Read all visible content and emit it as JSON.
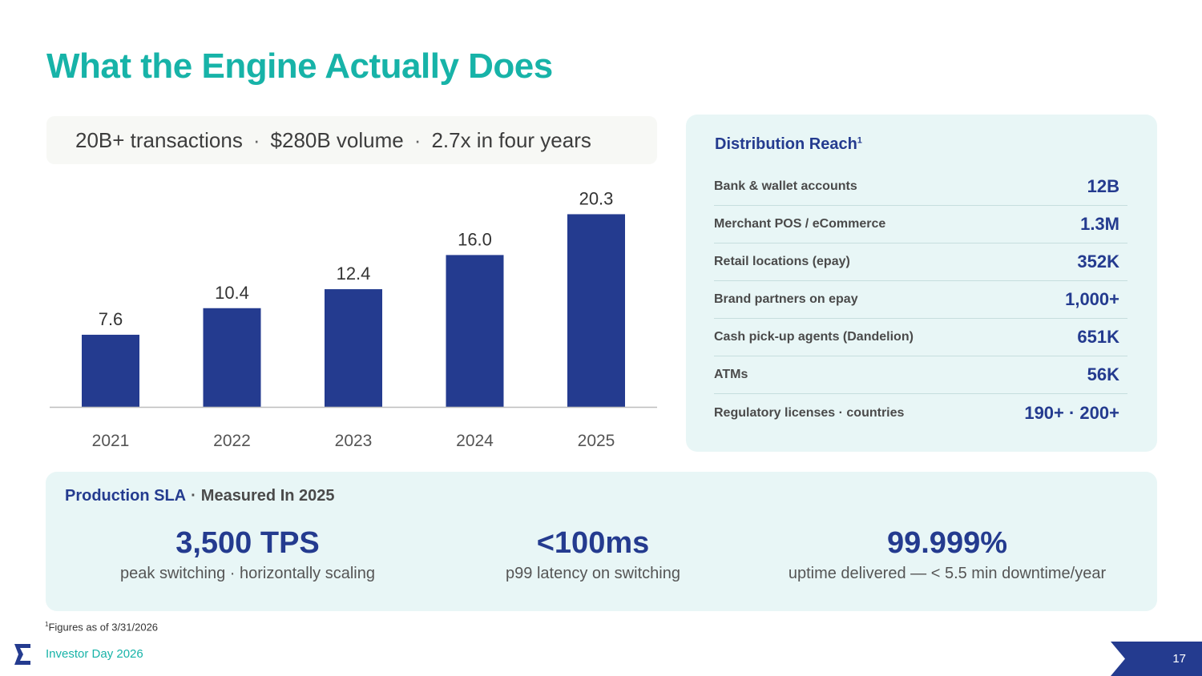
{
  "title": "What the Engine Actually Does",
  "summary": {
    "item1": "20B+ transactions",
    "item2": "$280B volume",
    "item3": "2.7x in four years",
    "separator": "·"
  },
  "chart_data": {
    "type": "bar",
    "categories": [
      "2021",
      "2022",
      "2023",
      "2024",
      "2025"
    ],
    "values": [
      7.6,
      10.4,
      12.4,
      16.0,
      20.3
    ],
    "value_labels": [
      "7.6",
      "10.4",
      "12.4",
      "16.0",
      "20.3"
    ],
    "title": "",
    "xlabel": "",
    "ylabel": "",
    "ylim": [
      0,
      22
    ],
    "grid": false,
    "bar_color": "#243b8f"
  },
  "distribution": {
    "title": "Distribution Reach",
    "footnote_marker": "1",
    "rows": [
      {
        "label": "Bank & wallet accounts",
        "value": "12B"
      },
      {
        "label": "Merchant POS / eCommerce",
        "value": "1.3M"
      },
      {
        "label": "Retail locations (epay)",
        "value": "352K"
      },
      {
        "label": "Brand partners on epay",
        "value": "1,000+"
      },
      {
        "label": "Cash pick-up agents (Dandelion)",
        "value": "651K"
      },
      {
        "label": "ATMs",
        "value": "56K"
      },
      {
        "label": "Regulatory licenses · countries",
        "value": "190+ · 200+"
      }
    ]
  },
  "sla": {
    "heading": "Production SLA",
    "separator": "·",
    "subheading": "Measured In 2025",
    "metrics": [
      {
        "value": "3,500 TPS",
        "desc": "peak switching  ·  horizontally scaling"
      },
      {
        "value": "<100ms",
        "desc": "p99 latency on switching"
      },
      {
        "value": "99.999%",
        "desc": "uptime delivered  —  < 5.5 min downtime/year"
      }
    ]
  },
  "footnote": {
    "marker": "1",
    "text": "Figures as of 3/31/2026"
  },
  "footer": {
    "label": "Investor Day 2026",
    "page": "17"
  },
  "colors": {
    "accent": "#17b3a8",
    "brand": "#243b8f",
    "panel": "#e8f6f6"
  }
}
